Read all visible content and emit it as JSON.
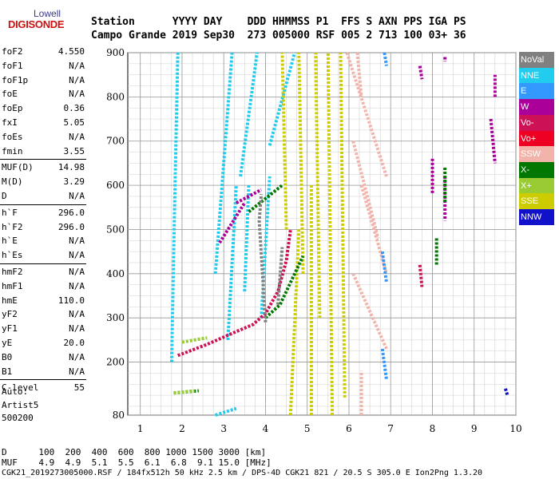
{
  "logo": {
    "top": "Lowell",
    "bottom": "DIGISONDE"
  },
  "header": {
    "line1": "Station      YYYY DAY    DDD HHMMSS P1  FFS S AXN PPS IGA PS",
    "line2": "Campo Grande 2019 Sep30  273 005000 RSF 005 2 713 100 03+ 36"
  },
  "params": [
    {
      "name": "foF2",
      "value": "4.550"
    },
    {
      "name": "foF1",
      "value": "N/A"
    },
    {
      "name": "foF1p",
      "value": "N/A"
    },
    {
      "name": "foE",
      "value": "N/A"
    },
    {
      "name": "foEp",
      "value": "0.36"
    },
    {
      "name": "fxI",
      "value": "5.05"
    },
    {
      "name": "foEs",
      "value": "N/A"
    },
    {
      "name": "fmin",
      "value": "3.55"
    },
    {
      "name": "MUF(D)",
      "value": "14.98"
    },
    {
      "name": "M(D)",
      "value": "3.29"
    },
    {
      "name": "D",
      "value": "N/A"
    },
    {
      "name": "h`F",
      "value": "296.0"
    },
    {
      "name": "h`F2",
      "value": "296.0"
    },
    {
      "name": "h`E",
      "value": "N/A"
    },
    {
      "name": "h`Es",
      "value": "N/A"
    },
    {
      "name": "hmF2",
      "value": "N/A"
    },
    {
      "name": "hmF1",
      "value": "N/A"
    },
    {
      "name": "hmE",
      "value": "110.0"
    },
    {
      "name": "yF2",
      "value": "N/A"
    },
    {
      "name": "yF1",
      "value": "N/A"
    },
    {
      "name": "yE",
      "value": "20.0"
    },
    {
      "name": "B0",
      "value": "N/A"
    },
    {
      "name": "B1",
      "value": "N/A"
    },
    {
      "name": "C-level",
      "value": "55"
    }
  ],
  "auto": [
    "Auto:",
    "Artist5",
    "500200"
  ],
  "legend": [
    {
      "label": "NoVal",
      "color": "#808080"
    },
    {
      "label": "NNE",
      "color": "#22ccee"
    },
    {
      "label": "E",
      "color": "#3399ff"
    },
    {
      "label": "W",
      "color": "#aa0099"
    },
    {
      "label": "Vo-",
      "color": "#cc1155"
    },
    {
      "label": "Vo+",
      "color": "#ee0022"
    },
    {
      "label": "SSW",
      "color": "#f2b3aa"
    },
    {
      "label": "X-",
      "color": "#007700"
    },
    {
      "label": "X+",
      "color": "#99cc33"
    },
    {
      "label": "SSE",
      "color": "#cccc00"
    },
    {
      "label": "NNW",
      "color": "#1111cc"
    }
  ],
  "footer": {
    "d_line": "D      100  200  400  600  800 1000 1500 3000 [km]",
    "muf_line": "MUF    4.9  4.9  5.1  5.5  6.1  6.8  9.1 15.0 [MHz]",
    "bottom": "CGK21_2019273005000.RSF / 184fx512h 50 kHz 2.5 km / DPS-4D CGK21 821 / 20.5 S 305.0 E Ion2Png 1.3.20"
  },
  "chart_data": {
    "type": "scatter",
    "title": "",
    "xlabel": "",
    "ylabel": "",
    "xlim": [
      1,
      10
    ],
    "ylim": [
      80,
      900
    ],
    "x_ticks": [
      1,
      2,
      3,
      4,
      5,
      6,
      7,
      8,
      9,
      10
    ],
    "y_ticks": [
      80,
      200,
      300,
      400,
      500,
      600,
      700,
      800,
      900
    ],
    "grid": true,
    "series": [
      {
        "name": "NNE",
        "color": "#22ccee",
        "segments": [
          [
            [
              2.8,
              80
            ],
            [
              3.3,
              95
            ]
          ],
          [
            [
              1.75,
              200
            ],
            [
              1.82,
              540
            ],
            [
              1.9,
              900
            ]
          ],
          [
            [
              2.8,
              400
            ],
            [
              3.2,
              900
            ]
          ],
          [
            [
              3.1,
              250
            ],
            [
              3.3,
              600
            ]
          ],
          [
            [
              3.5,
              360
            ],
            [
              3.6,
              600
            ]
          ],
          [
            [
              3.4,
              620
            ],
            [
              3.8,
              900
            ]
          ],
          [
            [
              4.1,
              690
            ],
            [
              4.7,
              900
            ]
          ],
          [
            [
              3.9,
              300
            ],
            [
              4.1,
              620
            ]
          ]
        ]
      },
      {
        "name": "SSE",
        "color": "#cccc00",
        "segments": [
          [
            [
              4.5,
              500
            ],
            [
              4.4,
              900
            ]
          ],
          [
            [
              4.6,
              80
            ],
            [
              4.8,
              500
            ]
          ],
          [
            [
              4.9,
              400
            ],
            [
              4.8,
              900
            ]
          ],
          [
            [
              5.1,
              80
            ],
            [
              5.1,
              600
            ]
          ],
          [
            [
              5.3,
              300
            ],
            [
              5.2,
              900
            ]
          ],
          [
            [
              5.6,
              80
            ],
            [
              5.5,
              900
            ]
          ],
          [
            [
              5.9,
              120
            ],
            [
              5.8,
              900
            ]
          ]
        ]
      },
      {
        "name": "SSW",
        "color": "#f2b3aa",
        "segments": [
          [
            [
              5.95,
              900
            ],
            [
              6.9,
              620
            ]
          ],
          [
            [
              6.1,
              700
            ],
            [
              6.7,
              480
            ]
          ],
          [
            [
              6.2,
              900
            ],
            [
              6.3,
              800
            ]
          ],
          [
            [
              6.1,
              400
            ],
            [
              6.9,
              230
            ]
          ],
          [
            [
              6.3,
              600
            ],
            [
              6.9,
              400
            ]
          ],
          [
            [
              6.3,
              80
            ],
            [
              6.3,
              180
            ]
          ]
        ]
      },
      {
        "name": "E",
        "color": "#3399ff",
        "segments": [
          [
            [
              6.8,
              450
            ],
            [
              6.9,
              380
            ]
          ],
          [
            [
              6.8,
              230
            ],
            [
              6.9,
              160
            ]
          ],
          [
            [
              6.85,
              900
            ],
            [
              6.9,
              870
            ]
          ]
        ]
      },
      {
        "name": "W",
        "color": "#aa0099",
        "segments": [
          [
            [
              2.9,
              470
            ],
            [
              3.5,
              560
            ]
          ],
          [
            [
              3.3,
              560
            ],
            [
              3.9,
              590
            ]
          ],
          [
            [
              8.3,
              620
            ],
            [
              8.3,
              520
            ]
          ],
          [
            [
              8.0,
              660
            ],
            [
              8.0,
              580
            ]
          ],
          [
            [
              9.4,
              750
            ],
            [
              9.5,
              650
            ]
          ],
          [
            [
              9.5,
              800
            ],
            [
              9.5,
              850
            ]
          ],
          [
            [
              7.7,
              870
            ],
            [
              7.75,
              840
            ]
          ],
          [
            [
              8.3,
              890
            ],
            [
              8.3,
              880
            ]
          ]
        ]
      },
      {
        "name": "Vo-",
        "color": "#cc1155",
        "segments": [
          [
            [
              1.9,
              215
            ],
            [
              2.6,
              240
            ],
            [
              3.2,
              265
            ],
            [
              3.7,
              285
            ],
            [
              4.0,
              310
            ],
            [
              4.3,
              360
            ],
            [
              4.5,
              430
            ],
            [
              4.6,
              500
            ]
          ],
          [
            [
              7.7,
              420
            ],
            [
              7.75,
              370
            ]
          ]
        ]
      },
      {
        "name": "X-",
        "color": "#007700",
        "segments": [
          [
            [
              1.8,
              130
            ],
            [
              2.4,
              135
            ]
          ],
          [
            [
              3.6,
              540
            ],
            [
              4.4,
              600
            ]
          ],
          [
            [
              4.0,
              300
            ],
            [
              4.35,
              330
            ],
            [
              4.6,
              380
            ],
            [
              4.9,
              440
            ]
          ],
          [
            [
              8.3,
              640
            ],
            [
              8.3,
              560
            ]
          ],
          [
            [
              8.1,
              480
            ],
            [
              8.1,
              420
            ]
          ]
        ]
      },
      {
        "name": "X+",
        "color": "#99cc33",
        "segments": [
          [
            [
              2.0,
              245
            ],
            [
              2.6,
              255
            ]
          ],
          [
            [
              1.8,
              130
            ],
            [
              2.3,
              135
            ]
          ]
        ]
      },
      {
        "name": "NNW",
        "color": "#1111cc",
        "segments": [
          [
            [
              9.75,
              140
            ],
            [
              9.8,
              125
            ]
          ]
        ]
      },
      {
        "name": "NoVal",
        "color": "#808080",
        "segments": [
          [
            [
              4.0,
              290
            ],
            [
              3.85,
              520
            ],
            [
              3.9,
              580
            ]
          ],
          [
            [
              4.3,
              330
            ],
            [
              4.4,
              460
            ]
          ]
        ]
      }
    ]
  }
}
